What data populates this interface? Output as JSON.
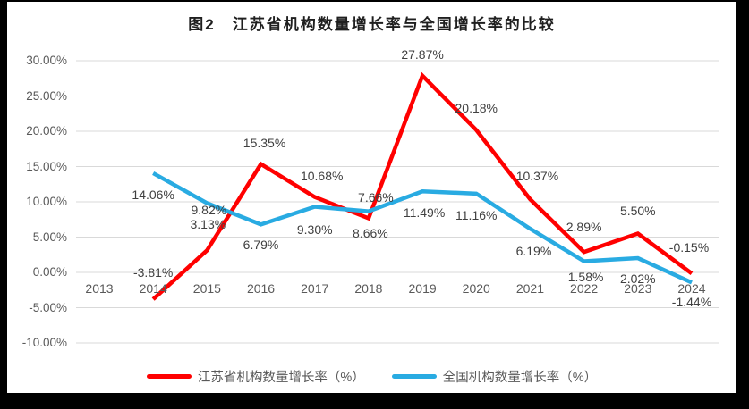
{
  "frame": {
    "outer_background": "#000000",
    "chart_background": "#FFFFFF"
  },
  "chart_data": {
    "type": "line",
    "title": "图2　江苏省机构数量增长率与全国增长率的比较",
    "categories": [
      "2013",
      "2014",
      "2015",
      "2016",
      "2017",
      "2018",
      "2019",
      "2020",
      "2021",
      "2022",
      "2023",
      "2024"
    ],
    "xlabel": "",
    "ylabel": "",
    "ylim": [
      -10,
      30
    ],
    "grid": true,
    "legend_position": "bottom",
    "y_ticks": [
      {
        "label": "30.00%",
        "value": 30
      },
      {
        "label": "25.00%",
        "value": 25
      },
      {
        "label": "20.00%",
        "value": 20
      },
      {
        "label": "15.00%",
        "value": 15
      },
      {
        "label": "10.00%",
        "value": 10
      },
      {
        "label": "5.00%",
        "value": 5
      },
      {
        "label": "0.00%",
        "value": 0
      },
      {
        "label": "-5.00%",
        "value": -5
      },
      {
        "label": "-10.00%",
        "value": -10
      }
    ],
    "colors": {
      "grid": "#D9D9D9",
      "axis_text": "#595959",
      "data_label_text": "#404040",
      "title_text": "#1F1F1F",
      "jiangsu_red": "#FF0000",
      "national_blue": "#29ABE2"
    },
    "series": [
      {
        "name": "江苏省机构数量增长率（%）",
        "color": "#FF0000",
        "values": [
          null,
          -3.81,
          3.13,
          15.35,
          10.68,
          7.66,
          27.87,
          20.18,
          10.37,
          2.89,
          5.5,
          -0.15
        ],
        "point_labels": [
          "",
          "-3.81%",
          "3.13%",
          "15.35%",
          "10.68%",
          "7.66%",
          "27.87%",
          "20.18%",
          "10.37%",
          "2.89%",
          "5.50%",
          "-0.15%"
        ],
        "label_offsets": [
          [
            0,
            0
          ],
          [
            0,
            -29
          ],
          [
            1,
            -28
          ],
          [
            4,
            -23
          ],
          [
            8,
            -23
          ],
          [
            8,
            -22
          ],
          [
            0,
            -23
          ],
          [
            0,
            -24
          ],
          [
            8,
            -25
          ],
          [
            0,
            -27
          ],
          [
            0,
            -25
          ],
          [
            -3,
            -28
          ]
        ]
      },
      {
        "name": "全国机构数量增长率（%）",
        "color": "#29ABE2",
        "values": [
          null,
          14.06,
          9.82,
          6.79,
          9.3,
          8.66,
          11.49,
          11.16,
          6.19,
          1.58,
          2.02,
          -1.44
        ],
        "point_labels": [
          "",
          "14.06%",
          "9.82%",
          "6.79%",
          "9.30%",
          "8.66%",
          "11.49%",
          "11.16%",
          "6.19%",
          "1.58%",
          "2.02%",
          "-1.44%"
        ],
        "label_offsets": [
          [
            0,
            0
          ],
          [
            0,
            25
          ],
          [
            2,
            9
          ],
          [
            0,
            24
          ],
          [
            0,
            26
          ],
          [
            2,
            25
          ],
          [
            2,
            25
          ],
          [
            0,
            25
          ],
          [
            4,
            26
          ],
          [
            2,
            18
          ],
          [
            0,
            24
          ],
          [
            0,
            23
          ]
        ]
      }
    ]
  }
}
